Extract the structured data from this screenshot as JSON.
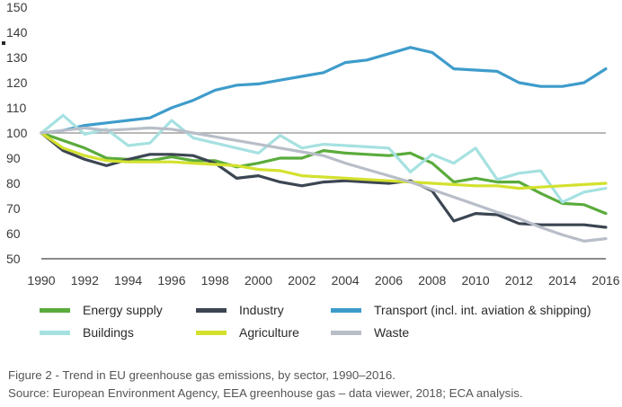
{
  "chart_data": {
    "type": "line",
    "x": [
      1990,
      1991,
      1992,
      1993,
      1994,
      1995,
      1996,
      1997,
      1998,
      1999,
      2000,
      2001,
      2002,
      2003,
      2004,
      2005,
      2006,
      2007,
      2008,
      2009,
      2010,
      2011,
      2012,
      2013,
      2014,
      2015,
      2016
    ],
    "xticks": [
      "1990",
      "1992",
      "1994",
      "1996",
      "1998",
      "2000",
      "2002",
      "2004",
      "2006",
      "2008",
      "2010",
      "2012",
      "2014",
      "2016"
    ],
    "yticks": [
      "50",
      "60",
      "70",
      "80",
      "90",
      "100",
      "110",
      "120",
      "130",
      "140",
      "150"
    ],
    "ylim": [
      50,
      150
    ],
    "xlim": [
      1990,
      2016
    ],
    "reference_line": 100,
    "grid": "reference line at 100 and baseline at 50 only",
    "legend_position": "bottom",
    "series": [
      {
        "name": "Energy supply",
        "color": "#5aab3c",
        "values": [
          100,
          97,
          94,
          90,
          89.5,
          89,
          90.5,
          89,
          89,
          86.5,
          88,
          90,
          90,
          93,
          92,
          91.5,
          91,
          92,
          88,
          80.5,
          82,
          80.5,
          80.5,
          76,
          72,
          71.5,
          68
        ]
      },
      {
        "name": "Industry",
        "color": "#3c4652",
        "values": [
          100,
          93,
          89.5,
          87,
          89.5,
          91.5,
          91.5,
          91,
          88,
          82,
          83,
          80.5,
          79,
          80.5,
          81,
          80.5,
          80,
          81,
          77,
          65,
          68,
          67.5,
          64,
          63.5,
          63.5,
          63.5,
          62.5
        ]
      },
      {
        "name": "Transport (incl. int. aviation & shipping)",
        "color": "#3e9ccb",
        "values": [
          100,
          101,
          103,
          104,
          105,
          106,
          110,
          113,
          117,
          119,
          119.5,
          121,
          122.5,
          124,
          128,
          129,
          131.5,
          134,
          132,
          125.5,
          125,
          124.5,
          120,
          118.5,
          118.5,
          120,
          125.5
        ]
      },
      {
        "name": "Buildings",
        "color": "#a6e1e1",
        "values": [
          100,
          107,
          99.5,
          101.5,
          95,
          96,
          105,
          98,
          96,
          94,
          92,
          99,
          94,
          95.5,
          95,
          94.5,
          94,
          84.5,
          91.5,
          88,
          94,
          81.5,
          84,
          85,
          72.5,
          76.5,
          78
        ]
      },
      {
        "name": "Agriculture",
        "color": "#d3e12e",
        "values": [
          100,
          94,
          91,
          89,
          88.5,
          88.5,
          88.5,
          88,
          87.5,
          87,
          85.5,
          85,
          83,
          82.5,
          82,
          81.5,
          81,
          80.5,
          80,
          79.5,
          79,
          79,
          78,
          78.5,
          79,
          79.5,
          80
        ]
      },
      {
        "name": "Waste",
        "color": "#b8bec8",
        "values": [
          100,
          101,
          102,
          101,
          101.5,
          102,
          101.5,
          100,
          98.5,
          97,
          95.5,
          94,
          92.5,
          91,
          88,
          85.5,
          83,
          80.5,
          77.5,
          74.5,
          71.5,
          68.5,
          66,
          62.5,
          59.5,
          57,
          58
        ]
      }
    ]
  },
  "caption": {
    "line1": "Figure 2 - Trend in EU greenhouse gas emissions, by sector, 1990–2016.",
    "line2": "Source: European Environment Agency, EEA greenhouse gas – data viewer, 2018; ECA analysis."
  }
}
